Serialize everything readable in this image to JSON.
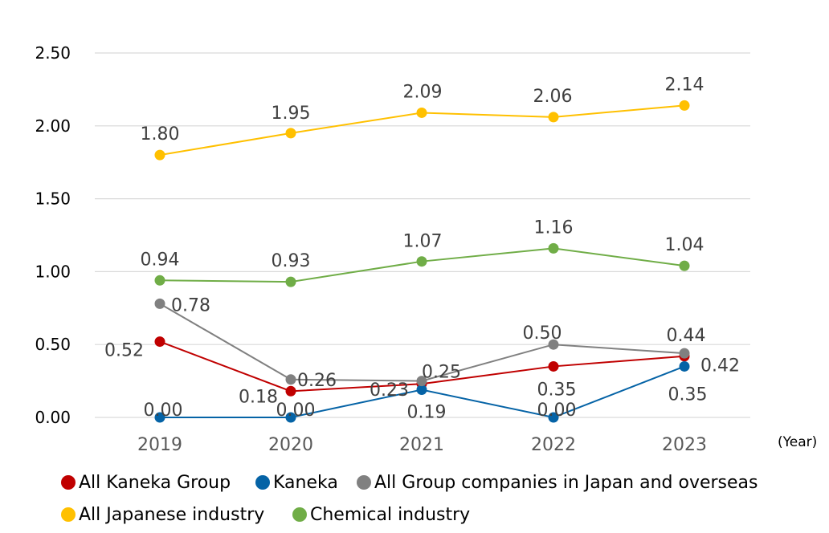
{
  "chart_data": {
    "type": "line",
    "categories": [
      "2019",
      "2020",
      "2021",
      "2022",
      "2023"
    ],
    "x_unit_label": "(Year)",
    "ylim": [
      0,
      2.5
    ],
    "yticks": [
      "0.00",
      "0.50",
      "1.00",
      "1.50",
      "2.00",
      "2.50"
    ],
    "grid": true,
    "legend_position": "bottom",
    "series": [
      {
        "name": "All Kaneka Group",
        "color": "#C00000",
        "values": [
          0.52,
          0.18,
          0.23,
          0.35,
          0.42
        ],
        "labels": [
          "0.52",
          "0.18",
          "0.23",
          "0.35",
          "0.42"
        ]
      },
      {
        "name": "Kaneka",
        "color": "#0563A6",
        "values": [
          0.0,
          0.0,
          0.19,
          0.0,
          0.35
        ],
        "labels": [
          "0.00",
          "0.00",
          "0.19",
          "0.00",
          "0.35"
        ]
      },
      {
        "name": "All Group companies in Japan and overseas",
        "color": "#808080",
        "values": [
          0.78,
          0.26,
          0.25,
          0.5,
          0.44
        ],
        "labels": [
          "0.78",
          "0.26",
          "0.25",
          "0.50",
          "0.44"
        ]
      },
      {
        "name": "All Japanese industry",
        "color": "#FFC000",
        "values": [
          1.8,
          1.95,
          2.09,
          2.06,
          2.14
        ],
        "labels": [
          "1.80",
          "1.95",
          "2.09",
          "2.06",
          "2.14"
        ]
      },
      {
        "name": "Chemical industry",
        "color": "#70AD47",
        "values": [
          0.94,
          0.93,
          1.07,
          1.16,
          1.04
        ],
        "labels": [
          "0.94",
          "0.93",
          "1.07",
          "1.16",
          "1.04"
        ]
      }
    ]
  }
}
